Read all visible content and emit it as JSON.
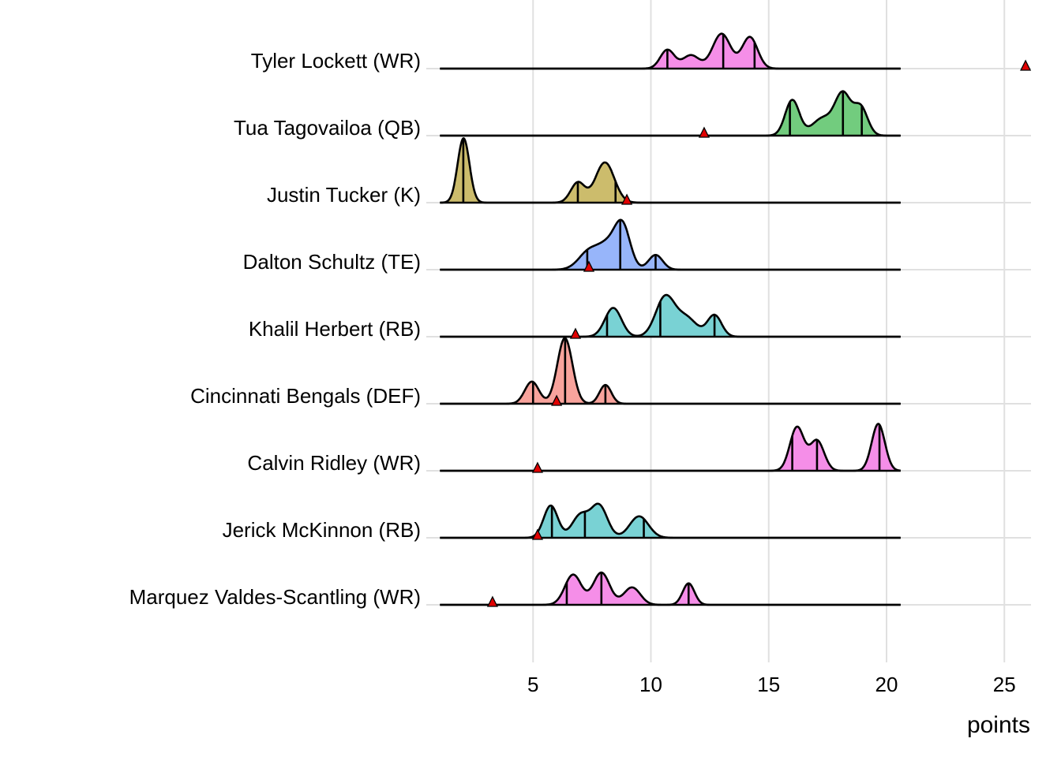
{
  "chart_data": {
    "type": "ridgeline",
    "xlabel": "points",
    "ylabel": "",
    "xlim": [
      -0.5,
      26.5
    ],
    "x_ticks": [
      5,
      10,
      15,
      20,
      25
    ],
    "x_tick_labels": [
      "5",
      "10",
      "15",
      "20",
      "25"
    ],
    "grid": true,
    "density_range": [
      1.05,
      20.6
    ],
    "series": [
      {
        "name": "Tyler Lockett (WR)",
        "color": "#F58EE8",
        "quantiles": [
          10.7,
          13.07,
          14.4
        ],
        "marker": 25.9,
        "components": [
          [
            10.7,
            0.3,
            0.28
          ],
          [
            11.7,
            0.35,
            0.2
          ],
          [
            13.0,
            0.38,
            0.52
          ],
          [
            14.2,
            0.33,
            0.47
          ]
        ]
      },
      {
        "name": "Tua Tagovailoa (QB)",
        "color": "#72CC7E",
        "quantiles": [
          15.9,
          18.15,
          18.95
        ],
        "marker": 12.26,
        "components": [
          [
            16.0,
            0.3,
            0.53
          ],
          [
            17.3,
            0.45,
            0.26
          ],
          [
            18.15,
            0.33,
            0.6
          ],
          [
            18.9,
            0.3,
            0.42
          ]
        ]
      },
      {
        "name": "Justin Tucker (K)",
        "color": "#CCBC6C",
        "quantiles": [
          2.04,
          6.9,
          8.5
        ],
        "marker": 8.98,
        "components": [
          [
            2.05,
            0.25,
            0.96
          ],
          [
            6.9,
            0.3,
            0.3
          ],
          [
            8.05,
            0.4,
            0.6
          ]
        ]
      },
      {
        "name": "Dalton Schultz (TE)",
        "color": "#97B5FA",
        "quantiles": [
          7.3,
          8.7,
          10.2
        ],
        "marker": 7.37,
        "components": [
          [
            7.4,
            0.45,
            0.28
          ],
          [
            8.2,
            0.4,
            0.32
          ],
          [
            8.8,
            0.33,
            0.62
          ],
          [
            10.2,
            0.3,
            0.22
          ]
        ]
      },
      {
        "name": "Khalil Herbert (RB)",
        "color": "#79D2D4",
        "quantiles": [
          8.14,
          10.4,
          12.7
        ],
        "marker": 6.8,
        "components": [
          [
            8.4,
            0.35,
            0.43
          ],
          [
            10.6,
            0.4,
            0.58
          ],
          [
            11.5,
            0.45,
            0.28
          ],
          [
            12.7,
            0.3,
            0.32
          ]
        ]
      },
      {
        "name": "Cincinnati Bengals (DEF)",
        "color": "#F8A39C",
        "quantiles": [
          5.0,
          6.36,
          8.07
        ],
        "marker": 6.0,
        "components": [
          [
            4.95,
            0.3,
            0.33
          ],
          [
            6.35,
            0.32,
            0.98
          ],
          [
            8.07,
            0.25,
            0.28
          ]
        ]
      },
      {
        "name": "Calvin Ridley (WR)",
        "color": "#F58EE8",
        "quantiles": [
          16.0,
          17.05,
          19.7
        ],
        "marker": 5.19,
        "components": [
          [
            16.2,
            0.3,
            0.65
          ],
          [
            17.05,
            0.3,
            0.45
          ],
          [
            19.65,
            0.28,
            0.7
          ]
        ]
      },
      {
        "name": "Jerick McKinnon (RB)",
        "color": "#79D2D4",
        "quantiles": [
          5.8,
          7.2,
          9.7
        ],
        "marker": 5.19,
        "components": [
          [
            5.75,
            0.3,
            0.48
          ],
          [
            7.0,
            0.35,
            0.33
          ],
          [
            7.8,
            0.35,
            0.48
          ],
          [
            9.5,
            0.4,
            0.32
          ]
        ]
      },
      {
        "name": "Marquez Valdes-Scantling (WR)",
        "color": "#F58EE8",
        "quantiles": [
          6.43,
          7.9,
          11.6
        ],
        "marker": 3.28,
        "components": [
          [
            6.7,
            0.35,
            0.45
          ],
          [
            7.9,
            0.35,
            0.48
          ],
          [
            9.2,
            0.35,
            0.26
          ],
          [
            11.6,
            0.25,
            0.32
          ]
        ]
      }
    ],
    "marker_color": "#E00000"
  }
}
